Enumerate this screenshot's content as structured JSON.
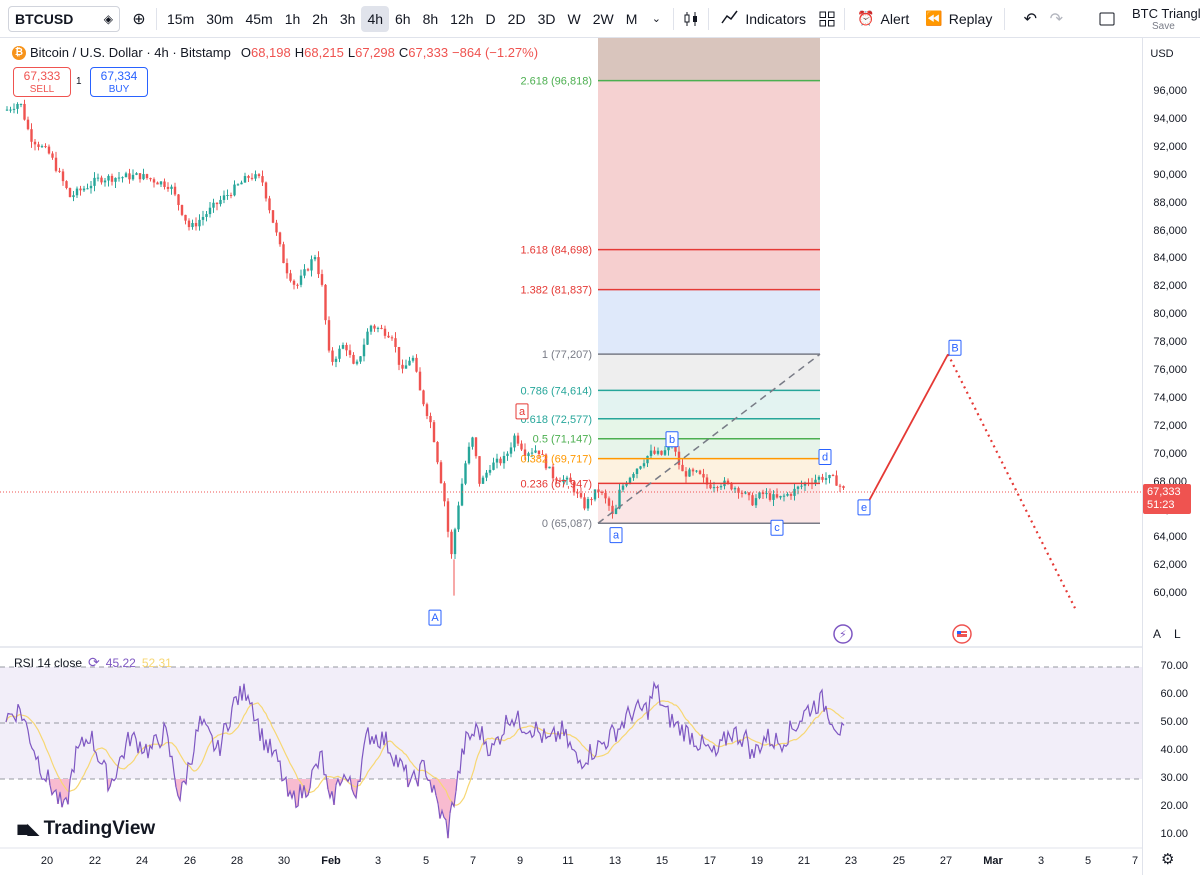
{
  "toolbar": {
    "symbol": "BTCUSD",
    "timeframes": [
      "15m",
      "30m",
      "45m",
      "1h",
      "2h",
      "3h",
      "4h",
      "6h",
      "8h",
      "12h",
      "D",
      "2D",
      "3D",
      "W",
      "2W",
      "M"
    ],
    "active_timeframe": "4h",
    "indicators_label": "Indicators",
    "alert_label": "Alert",
    "replay_label": "Replay",
    "layout_name": "BTC Triangle",
    "layout_save": "Save"
  },
  "legend": {
    "symbol_title": "Bitcoin / U.S. Dollar · 4h · Bitstamp",
    "open_label": "O",
    "open": "68,198",
    "high_label": "H",
    "high": "68,215",
    "low_label": "L",
    "low": "67,298",
    "close_label": "C",
    "close": "67,333",
    "change": "−864 (−1.27%)"
  },
  "trade": {
    "sell_price": "67,333",
    "sell_label": "SELL",
    "buy_price": "67,334",
    "buy_label": "BUY",
    "spread": "1"
  },
  "price_axis": {
    "currency": "USD",
    "ticks": [
      "96,000",
      "94,000",
      "92,000",
      "90,000",
      "88,000",
      "86,000",
      "84,000",
      "82,000",
      "80,000",
      "78,000",
      "76,000",
      "74,000",
      "72,000",
      "70,000",
      "68,000",
      "66,000",
      "64,000",
      "62,000",
      "60,000"
    ],
    "last_price": "67,333",
    "countdown": "51:23",
    "auto_label": "A",
    "log_label": "L"
  },
  "fib_levels": [
    {
      "label": "2.618 (96,818)",
      "color": "#4caf50"
    },
    {
      "label": "1.618 (84,698)",
      "color": "#e53935"
    },
    {
      "label": "1.382 (81,837)",
      "color": "#e53935"
    },
    {
      "label": "1 (77,207)",
      "color": "#787b86"
    },
    {
      "label": "0.786 (74,614)",
      "color": "#26a69a"
    },
    {
      "label": "0.618 (72,577)",
      "color": "#26a69a"
    },
    {
      "label": "0.5 (71,147)",
      "color": "#4caf50"
    },
    {
      "label": "0.382 (69,717)",
      "color": "#ff9800"
    },
    {
      "label": "0.236 (67,947)",
      "color": "#e53935"
    },
    {
      "label": "0 (65,087)",
      "color": "#787b86"
    }
  ],
  "wave_labels": {
    "big_A": "A",
    "red_a": "a",
    "small_a": "a",
    "small_b": "b",
    "small_c": "c",
    "small_d": "d",
    "small_e": "e",
    "big_B": "B"
  },
  "rsi": {
    "title": "RSI 14 close",
    "value": "45.22",
    "ma_value": "52.31",
    "ticks": [
      "70.00",
      "60.00",
      "50.00",
      "40.00",
      "30.00",
      "20.00",
      "10.00"
    ],
    "line_color": "#7e57c2",
    "ma_color": "#f7d773"
  },
  "time_axis": {
    "ticks": [
      "20",
      "22",
      "24",
      "26",
      "28",
      "30",
      "Feb",
      "3",
      "5",
      "7",
      "9",
      "11",
      "13",
      "15",
      "17",
      "19",
      "21",
      "23",
      "25",
      "27",
      "Mar",
      "3",
      "5",
      "7"
    ]
  },
  "brand": {
    "logo_text": "TradingView"
  },
  "colors": {
    "up": "#26a69a",
    "down": "#ef5350",
    "accent": "#2962ff"
  }
}
